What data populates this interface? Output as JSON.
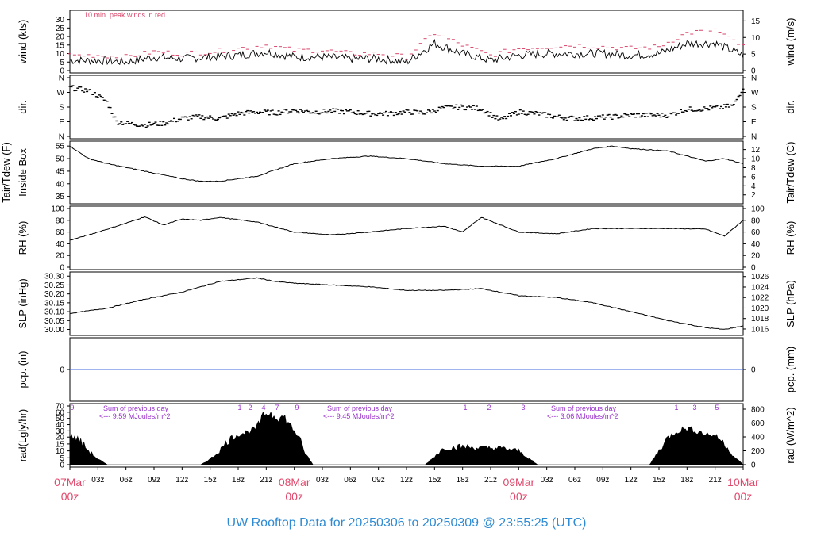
{
  "footer_title": "UW Rooftop Data for 20250306  to  20250309 @ 23:55:25  (UTC)",
  "colors": {
    "axis": "#000000",
    "trace": "#000000",
    "gust": "#d9476b",
    "date": "#e0486b",
    "footer": "#2e8bd4",
    "annotation": "#9932cc",
    "baseline": "#4169e1"
  },
  "time_axis": {
    "tick_labels": [
      "03z",
      "06z",
      "09z",
      "12z",
      "15z",
      "18z",
      "21z",
      "03z",
      "06z",
      "09z",
      "12z",
      "15z",
      "18z",
      "21z",
      "03z",
      "06z",
      "09z",
      "12z",
      "15z",
      "18z",
      "21z"
    ],
    "date_labels": [
      {
        "day": "07Mar",
        "hour": "00z"
      },
      {
        "day": "08Mar",
        "hour": "00z"
      },
      {
        "day": "09Mar",
        "hour": "00z"
      },
      {
        "day": "10Mar",
        "hour": "00z"
      }
    ],
    "x_range_hours": [
      0,
      72
    ]
  },
  "chart_data": [
    {
      "type": "line",
      "panel": "wind",
      "left_label": "wind (kts)",
      "right_label": "wind (m/s)",
      "annotation": "10 min. peak winds in red",
      "left_ticks": [
        "0",
        "5",
        "10",
        "15",
        "20",
        "25",
        "30"
      ],
      "right_ticks": [
        "0",
        "5",
        "10",
        "15"
      ],
      "ylim": [
        0,
        34
      ],
      "series": [
        {
          "x": [
            0,
            3,
            6,
            9,
            12,
            15,
            18,
            21,
            24,
            27,
            30,
            33,
            36,
            39,
            42,
            45,
            48,
            51,
            54,
            57,
            60,
            63,
            66,
            69,
            72
          ],
          "values": [
            6,
            6,
            5,
            8,
            7,
            8,
            9,
            11,
            8,
            8,
            7,
            7,
            5,
            16,
            10,
            6,
            9,
            10,
            10,
            10,
            9,
            10,
            16,
            16,
            9
          ]
        },
        {
          "name": "10 min. peak winds in red",
          "x": [
            0,
            3,
            6,
            9,
            12,
            15,
            18,
            21,
            24,
            27,
            30,
            33,
            36,
            39,
            42,
            45,
            48,
            51,
            54,
            57,
            60,
            63,
            66,
            69,
            72
          ],
          "values": [
            9,
            9,
            8,
            11,
            10,
            11,
            13,
            15,
            12,
            12,
            10,
            10,
            8,
            22,
            15,
            9,
            13,
            14,
            15,
            14,
            13,
            14,
            22,
            24,
            14
          ]
        }
      ]
    },
    {
      "type": "scatter",
      "panel": "dir",
      "left_label": "dir.",
      "right_label": "dir.",
      "tick_labels": [
        "N",
        "E",
        "S",
        "W",
        "N"
      ],
      "ylim": [
        0,
        360
      ],
      "series": [
        {
          "x": [
            0,
            1,
            2,
            3,
            4,
            5,
            6,
            8,
            10,
            12,
            14,
            16,
            18,
            20,
            22,
            24,
            26,
            28,
            30,
            32,
            34,
            36,
            38,
            40,
            42,
            44,
            46,
            48,
            50,
            52,
            54,
            56,
            58,
            60,
            62,
            64,
            66,
            68,
            70,
            71,
            72
          ],
          "values": [
            300,
            290,
            280,
            250,
            210,
            90,
            80,
            70,
            80,
            110,
            120,
            110,
            140,
            150,
            145,
            160,
            150,
            155,
            150,
            140,
            140,
            150,
            145,
            175,
            180,
            170,
            100,
            150,
            140,
            120,
            110,
            115,
            120,
            130,
            130,
            130,
            165,
            170,
            180,
            190,
            300
          ]
        }
      ]
    },
    {
      "type": "line",
      "panel": "temperature",
      "left_label": "Inside Box",
      "left_label_outer": "Tair/Tdew (F)",
      "right_label": "Tair/Tdew (C)",
      "left_ticks": [
        "35",
        "40",
        "45",
        "50",
        "55"
      ],
      "right_ticks": [
        "2",
        "4",
        "6",
        "8",
        "10",
        "12"
      ],
      "ylim": [
        33,
        56
      ],
      "series": [
        {
          "x": [
            0,
            2,
            4,
            8,
            12,
            14,
            16,
            20,
            24,
            28,
            32,
            36,
            38,
            40,
            44,
            48,
            52,
            56,
            58,
            60,
            64,
            66,
            68,
            70,
            72
          ],
          "values": [
            55,
            50,
            48,
            45,
            42,
            41,
            41,
            43,
            48,
            50,
            51,
            50,
            49,
            48,
            47,
            47,
            50,
            54,
            55,
            54,
            53,
            51,
            49,
            50,
            48
          ]
        }
      ]
    },
    {
      "type": "line",
      "panel": "rh",
      "left_label": "RH (%)",
      "right_label": "RH (%)",
      "ticks": [
        "0",
        "20",
        "40",
        "60",
        "80",
        "100"
      ],
      "ylim": [
        0,
        100
      ],
      "series": [
        {
          "x": [
            0,
            2,
            4,
            6,
            8,
            10,
            12,
            14,
            16,
            20,
            24,
            28,
            32,
            36,
            38,
            40,
            42,
            44,
            48,
            52,
            56,
            60,
            64,
            68,
            70,
            72
          ],
          "values": [
            46,
            55,
            65,
            75,
            86,
            72,
            82,
            80,
            85,
            77,
            60,
            55,
            60,
            66,
            68,
            70,
            60,
            85,
            60,
            57,
            66,
            66,
            66,
            65,
            53,
            80
          ]
        }
      ]
    },
    {
      "type": "line",
      "panel": "slp",
      "left_label": "SLP (inHg)",
      "right_label": "SLP (hPa)",
      "left_ticks": [
        "30.00",
        "30.05",
        "30.10",
        "30.15",
        "30.20",
        "30.25",
        "30.30"
      ],
      "right_ticks": [
        "1016",
        "1018",
        "1020",
        "1022",
        "1024",
        "1026"
      ],
      "ylim": [
        29.98,
        30.31
      ],
      "series": [
        {
          "x": [
            0,
            4,
            8,
            12,
            16,
            20,
            22,
            24,
            28,
            32,
            36,
            40,
            44,
            48,
            52,
            56,
            60,
            64,
            68,
            70,
            72
          ],
          "values": [
            30.09,
            30.12,
            30.17,
            30.21,
            30.27,
            30.29,
            30.27,
            30.26,
            30.25,
            30.24,
            30.22,
            30.22,
            30.23,
            30.19,
            30.18,
            30.15,
            30.1,
            30.05,
            30.01,
            30.0,
            30.02
          ]
        }
      ]
    },
    {
      "type": "line",
      "panel": "precip",
      "left_label": "pcp. (in)",
      "right_label": "pcp. (mm)",
      "left_ticks": [
        "0"
      ],
      "right_ticks": [
        "0"
      ],
      "ylim": [
        -1,
        1
      ],
      "series": [
        {
          "x": [
            0,
            72
          ],
          "values": [
            0,
            0
          ]
        }
      ]
    },
    {
      "type": "area",
      "panel": "radiation",
      "left_label": "rad(Lgly/hr)",
      "right_label": "rad (W/m^2)",
      "left_ticks": [
        "0",
        "5",
        "10",
        "15",
        "20",
        "30",
        "40",
        "50",
        "60",
        "70"
      ],
      "right_ticks": [
        "0",
        "200",
        "400",
        "600",
        "800"
      ],
      "ylim": [
        0,
        70
      ],
      "annotations": [
        {
          "text": "Sum of previous day"
        },
        {
          "text": "<--- 9.59 MJoules/m^2"
        },
        {
          "text": "Sum of previous day"
        },
        {
          "text": "<--- 9.45 MJoules/m^2"
        },
        {
          "text": "Sum of previous day"
        },
        {
          "text": "<--- 3.06 MJoules/m^2"
        }
      ],
      "hour_marks": [
        "9",
        "1",
        "2",
        "4",
        "7",
        "9",
        "1",
        "2",
        "3",
        "1",
        "3",
        "5"
      ],
      "series": [
        {
          "x": [
            0,
            1,
            2,
            3,
            4,
            14,
            15,
            16,
            17,
            18,
            19,
            20,
            21,
            22,
            23,
            24,
            25,
            26,
            38,
            40,
            42,
            44,
            46,
            48,
            50,
            62,
            63,
            64,
            65,
            66,
            67,
            68,
            69,
            70,
            71,
            72
          ],
          "values": [
            22,
            18,
            10,
            4,
            0,
            0,
            4,
            10,
            18,
            24,
            28,
            35,
            60,
            55,
            50,
            30,
            10,
            0,
            0,
            12,
            13,
            12,
            12,
            10,
            0,
            0,
            10,
            20,
            30,
            34,
            30,
            25,
            22,
            15,
            6,
            0
          ]
        }
      ]
    }
  ]
}
